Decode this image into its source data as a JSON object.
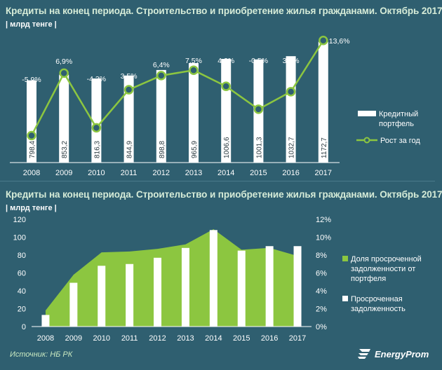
{
  "chart_data": [
    {
      "type": "bar+line",
      "title": "Кредиты на конец периода. Строительство и приобретение жилья гражданами. Октябрь 2017",
      "unit_label": "| млрд тенге |",
      "categories": [
        "2008",
        "2009",
        "2010",
        "2011",
        "2012",
        "2013",
        "2014",
        "2015",
        "2016",
        "2017"
      ],
      "series": [
        {
          "name": "Кредитный портфель",
          "kind": "bar",
          "values": [
            798.4,
            853.2,
            816.3,
            844.9,
            898.8,
            965.9,
            1006.6,
            1001.3,
            1032.7,
            1172.7
          ],
          "labels": [
            "798,4",
            "853,2",
            "816,3",
            "844,9",
            "898,8",
            "965,9",
            "1006,6",
            "1001,3",
            "1032,7",
            "1172,7"
          ]
        },
        {
          "name": "Рост за год",
          "kind": "line",
          "values": [
            -5.9,
            6.9,
            -4.3,
            3.5,
            6.4,
            7.5,
            4.2,
            -0.5,
            3.1,
            13.6
          ],
          "labels": [
            "-5,9%",
            "6,9%",
            "-4,3%",
            "3,5%",
            "6,4%",
            "7,5%",
            "4,2%",
            "-0,5%",
            "3,1%",
            "13,6%"
          ]
        }
      ],
      "legend": [
        "Кредитный портфель",
        "Рост за год"
      ],
      "legend_position": "right",
      "colors": {
        "bar": "#ffffff",
        "line": "#8cc640"
      }
    },
    {
      "type": "area+bar",
      "title": "Кредиты на конец периода. Строительство и приобретение жилья гражданами. Октябрь 2017",
      "unit_label": "| млрд тенге |",
      "categories": [
        "2008",
        "2009",
        "2010",
        "2011",
        "2012",
        "2013",
        "2014",
        "2015",
        "2016",
        "2017"
      ],
      "y_left": {
        "min": 0,
        "max": 120,
        "ticks": [
          "0",
          "20",
          "40",
          "60",
          "80",
          "100",
          "120"
        ]
      },
      "y_right": {
        "min": 0,
        "max": 12,
        "ticks": [
          "0%",
          "2%",
          "4%",
          "6%",
          "8%",
          "10%",
          "12%"
        ]
      },
      "series": [
        {
          "name": "Доля просроченной задолженности от портфеля",
          "kind": "area",
          "axis": "right",
          "values": [
            1.8,
            5.8,
            8.3,
            8.4,
            8.7,
            9.2,
            10.9,
            8.6,
            8.8,
            7.9
          ]
        },
        {
          "name": "Просроченная задолженность",
          "kind": "bar",
          "axis": "left",
          "values": [
            13,
            49,
            68,
            70,
            77,
            88,
            108,
            85,
            90,
            90
          ]
        }
      ],
      "legend": [
        "Доля просроченной задолженности от портфеля",
        "Просроченная задолженность"
      ],
      "legend_position": "right",
      "colors": {
        "area": "#8cc640",
        "bar": "#ffffff"
      }
    }
  ],
  "footer": {
    "source": "Источник: НБ РК",
    "brand": "EnergyProm"
  }
}
